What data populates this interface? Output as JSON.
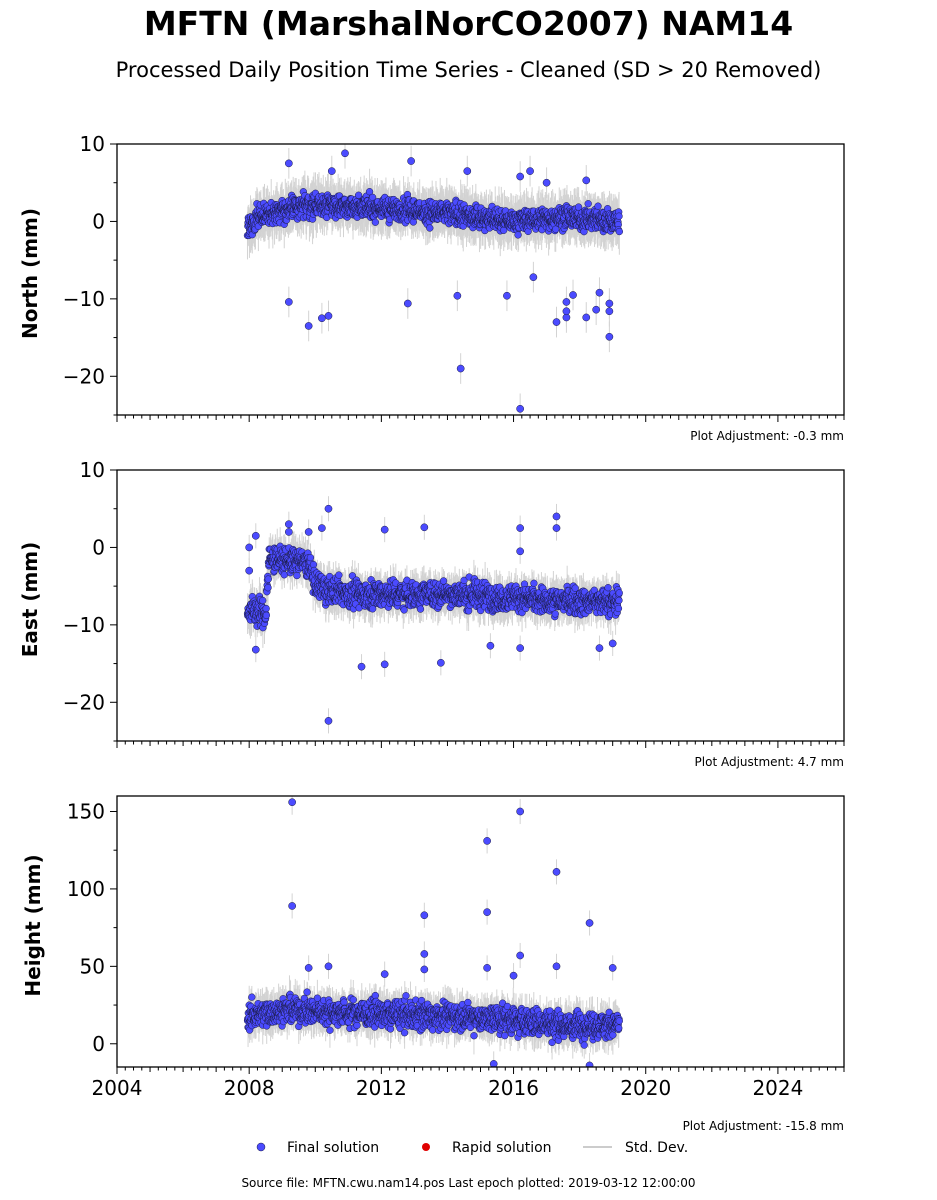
{
  "header": {
    "title": "MFTN (MarshalNorCO2007) NAM14",
    "subtitle": "Processed Daily Position Time Series - Cleaned (SD > 20 Removed)"
  },
  "footer": {
    "source": "Source file: MFTN.cwu.nam14.pos  Last epoch plotted: 2019-03-12 12:00:00"
  },
  "legend": {
    "placement": "bottom-center",
    "items": [
      {
        "label": "Final solution",
        "color": "#4b4bff"
      },
      {
        "label": "Rapid solution",
        "color": "#e00000"
      },
      {
        "label": "Std. Dev.",
        "color": "#cccccc"
      }
    ]
  },
  "colors": {
    "final": "#4b4bff",
    "rapid": "#e00000",
    "stddev": "#b0b0b0",
    "marker_edge": "#1a1a40"
  },
  "chart_data": [
    {
      "type": "scatter",
      "ylabel": "North (mm)",
      "xlim": [
        2004,
        2026
      ],
      "ylim": [
        -25,
        10
      ],
      "yticks": [
        -20,
        -10,
        0,
        10
      ],
      "xticks": [
        2004,
        2008,
        2012,
        2016,
        2020,
        2024
      ],
      "show_xtick_labels": false,
      "adjustment": "Plot Adjustment: -0.3 mm",
      "data_range": [
        2007.95,
        2019.2
      ],
      "band": {
        "segments": [
          [
            2007.95,
            -0.5
          ],
          [
            2008.5,
            1.0
          ],
          [
            2009.5,
            2.0
          ],
          [
            2011.0,
            2.0
          ],
          [
            2014.0,
            1.0
          ],
          [
            2016.0,
            0.0
          ],
          [
            2017.5,
            0.5
          ],
          [
            2019.2,
            0.0
          ]
        ],
        "sd": 2.2,
        "sigma": 1.0
      },
      "outliers": [
        [
          2010.9,
          8.8
        ],
        [
          2009.2,
          7.5
        ],
        [
          2012.9,
          7.8
        ],
        [
          2010.5,
          6.5
        ],
        [
          2014.6,
          6.5
        ],
        [
          2016.5,
          6.5
        ],
        [
          2016.2,
          5.8
        ],
        [
          2017.0,
          5.0
        ],
        [
          2018.2,
          5.3
        ],
        [
          2009.2,
          -10.4
        ],
        [
          2009.8,
          -13.5
        ],
        [
          2010.2,
          -12.5
        ],
        [
          2010.4,
          -12.2
        ],
        [
          2012.8,
          -10.6
        ],
        [
          2014.3,
          -9.6
        ],
        [
          2014.4,
          -19.0
        ],
        [
          2015.8,
          -9.6
        ],
        [
          2016.2,
          -24.2
        ],
        [
          2017.3,
          -13.0
        ],
        [
          2017.6,
          -12.4
        ],
        [
          2017.6,
          -11.6
        ],
        [
          2017.6,
          -10.4
        ],
        [
          2018.2,
          -12.4
        ],
        [
          2018.5,
          -11.4
        ],
        [
          2018.9,
          -10.6
        ],
        [
          2018.9,
          -11.6
        ],
        [
          2018.9,
          -14.9
        ],
        [
          2016.6,
          -7.2
        ],
        [
          2017.8,
          -9.5
        ],
        [
          2018.6,
          -9.2
        ]
      ]
    },
    {
      "type": "scatter",
      "ylabel": "East (mm)",
      "xlim": [
        2004,
        2026
      ],
      "ylim": [
        -25,
        10
      ],
      "yticks": [
        -20,
        -10,
        0,
        10
      ],
      "xticks": [
        2004,
        2008,
        2012,
        2016,
        2020,
        2024
      ],
      "show_xtick_labels": false,
      "adjustment": "Plot Adjustment: 4.7 mm",
      "data_range": [
        2007.95,
        2019.2
      ],
      "band": {
        "segments": [
          [
            2007.95,
            -8.0
          ],
          [
            2008.5,
            -8.5
          ],
          [
            2008.6,
            -1.5
          ],
          [
            2009.8,
            -2.0
          ],
          [
            2010.0,
            -5.0
          ],
          [
            2011.0,
            -6.0
          ],
          [
            2014.0,
            -6.0
          ],
          [
            2016.0,
            -6.5
          ],
          [
            2017.5,
            -7.0
          ],
          [
            2019.2,
            -7.0
          ]
        ],
        "sd": 1.8,
        "sigma": 1.2
      },
      "outliers": [
        [
          2008.0,
          0.0
        ],
        [
          2008.0,
          -3.0
        ],
        [
          2008.2,
          1.5
        ],
        [
          2009.2,
          3.0
        ],
        [
          2009.2,
          2.0
        ],
        [
          2009.8,
          2.0
        ],
        [
          2010.2,
          2.5
        ],
        [
          2010.4,
          5.0
        ],
        [
          2012.1,
          2.3
        ],
        [
          2013.3,
          2.6
        ],
        [
          2016.2,
          2.5
        ],
        [
          2017.3,
          4.0
        ],
        [
          2017.3,
          2.5
        ],
        [
          2016.2,
          -0.5
        ],
        [
          2010.4,
          -22.4
        ],
        [
          2011.4,
          -15.4
        ],
        [
          2012.1,
          -15.1
        ],
        [
          2013.8,
          -14.9
        ],
        [
          2008.2,
          -13.2
        ],
        [
          2015.3,
          -12.7
        ],
        [
          2016.2,
          -13.0
        ],
        [
          2018.6,
          -13.0
        ],
        [
          2019.0,
          -12.4
        ]
      ]
    },
    {
      "type": "scatter",
      "ylabel": "Height (mm)",
      "xlim": [
        2004,
        2026
      ],
      "ylim": [
        -15,
        160
      ],
      "yticks": [
        0,
        50,
        100,
        150
      ],
      "xticks": [
        2004,
        2008,
        2012,
        2016,
        2020,
        2024
      ],
      "show_xtick_labels": true,
      "adjustment": "Plot Adjustment: -15.8 mm",
      "data_range": [
        2007.95,
        2019.2
      ],
      "band": {
        "segments": [
          [
            2007.95,
            18.0
          ],
          [
            2009.0,
            22.0
          ],
          [
            2011.0,
            20.0
          ],
          [
            2014.0,
            18.0
          ],
          [
            2016.0,
            15.0
          ],
          [
            2017.5,
            12.0
          ],
          [
            2019.2,
            12.0
          ]
        ],
        "sd": 9.0,
        "sigma": 6.0
      },
      "outliers": [
        [
          2009.3,
          156.0
        ],
        [
          2009.3,
          89.0
        ],
        [
          2015.2,
          131.0
        ],
        [
          2015.2,
          85.0
        ],
        [
          2016.2,
          150.0
        ],
        [
          2017.3,
          111.0
        ],
        [
          2018.3,
          78.0
        ],
        [
          2013.3,
          83.0
        ],
        [
          2013.3,
          58.0
        ],
        [
          2013.3,
          48.0
        ],
        [
          2016.2,
          57.0
        ],
        [
          2017.3,
          50.0
        ],
        [
          2019.0,
          49.0
        ],
        [
          2009.8,
          49.0
        ],
        [
          2010.4,
          50.0
        ],
        [
          2015.2,
          49.0
        ],
        [
          2016.0,
          44.0
        ],
        [
          2012.1,
          45.0
        ],
        [
          2015.4,
          -13.0
        ],
        [
          2018.3,
          -14.0
        ]
      ]
    }
  ]
}
